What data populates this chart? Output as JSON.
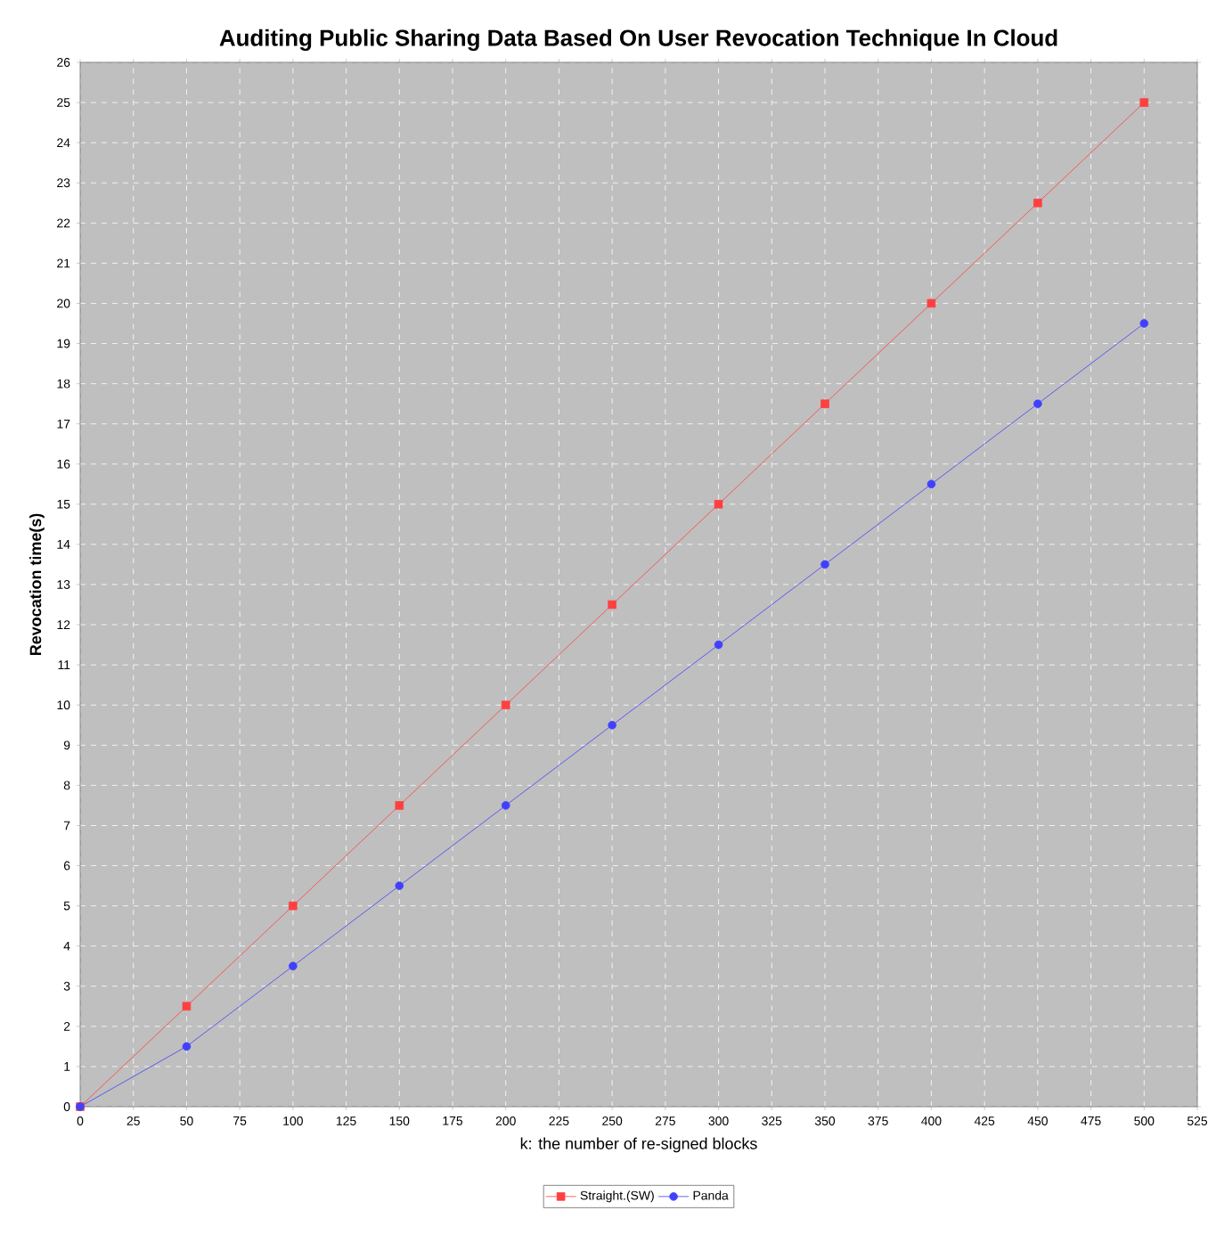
{
  "chart_data": {
    "type": "line",
    "title": "Auditing Public Sharing  Data Based On User Revocation Technique In Cloud",
    "xlabel": "k: the number of re-signed blocks",
    "ylabel": "Revocation time(s)",
    "x": [
      0,
      50,
      100,
      150,
      200,
      250,
      300,
      350,
      400,
      450,
      500
    ],
    "series": [
      {
        "name": "Straight.(SW)",
        "color": "#ff4040",
        "marker": "square",
        "values": [
          0,
          2.5,
          5,
          7.5,
          10,
          12.5,
          15,
          17.5,
          20,
          22.5,
          25
        ]
      },
      {
        "name": "Panda",
        "color": "#4040ff",
        "marker": "circle",
        "values": [
          0,
          1.5,
          3.5,
          5.5,
          7.5,
          9.5,
          11.5,
          13.5,
          15.5,
          17.5,
          19.5
        ]
      }
    ],
    "xlim": [
      0,
      525
    ],
    "ylim": [
      0,
      26
    ],
    "xticks": [
      0,
      25,
      50,
      75,
      100,
      125,
      150,
      175,
      200,
      225,
      250,
      275,
      300,
      325,
      350,
      375,
      400,
      425,
      450,
      475,
      500,
      525
    ],
    "yticks": [
      0,
      1,
      2,
      3,
      4,
      5,
      6,
      7,
      8,
      9,
      10,
      11,
      12,
      13,
      14,
      15,
      16,
      17,
      18,
      19,
      20,
      21,
      22,
      23,
      24,
      25,
      26
    ],
    "grid": true,
    "legend": "bottom",
    "line_style": "solid"
  }
}
